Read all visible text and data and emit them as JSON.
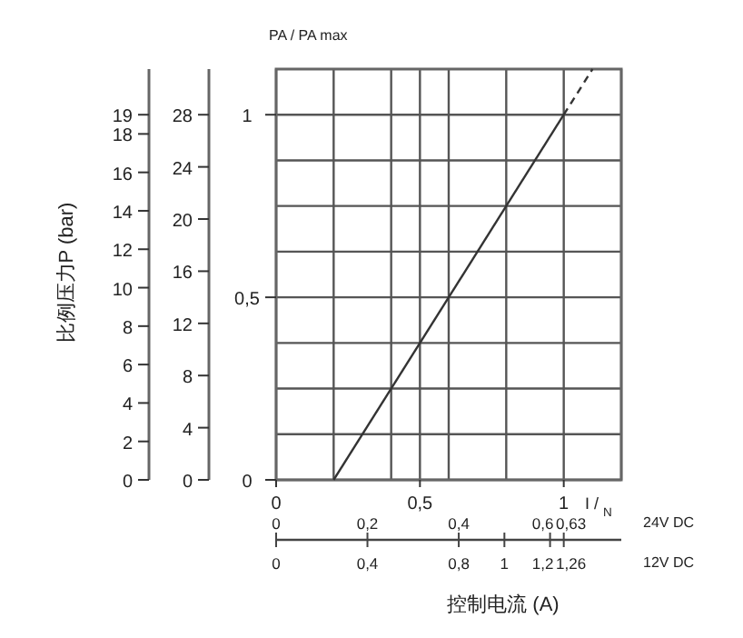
{
  "chart_data": {
    "type": "line",
    "ylabel": "PA / PA max",
    "xlabel": "I / $_{N}$",
    "x2label": "24V DC",
    "y2label": "比例压力P (bar)",
    "annotations": [
      "控制电流 (A)",
      "12V DC",
      "0",
      "0,4",
      "0,8",
      "1",
      "1,2",
      "1,26"
    ],
    "xlim": [
      0,
      1.2
    ],
    "xticks": [
      0,
      {
        "value": 0.2,
        "label": null
      },
      {
        "value": 0.4,
        "label": null
      },
      {
        "value": 0.5,
        "label": "0,5"
      },
      {
        "value": 0.6,
        "label": null
      },
      {
        "value": 0.8,
        "label": null
      },
      1,
      {
        "value": 1.2,
        "label": null
      }
    ],
    "ylim": [
      0,
      1.125
    ],
    "yticks": [
      0,
      {
        "value": 0.125,
        "label": null
      },
      {
        "value": 0.25,
        "label": null
      },
      {
        "value": 0.375,
        "label": null
      },
      {
        "value": 0.5,
        "label": "0,5"
      },
      {
        "value": 0.625,
        "label": null
      },
      {
        "value": 0.75,
        "label": null
      },
      {
        "value": 0.875,
        "label": null
      },
      1
    ],
    "x2lim": [
      0,
      0.756
    ],
    "x2ticks": [
      0,
      {
        "value": 0.2,
        "label": "0,2"
      },
      {
        "value": 0.4,
        "label": "0,4"
      },
      {
        "value": 0.5,
        "label": null
      },
      {
        "value": 0.6,
        "label": "0,6"
      },
      {
        "value": 0.63,
        "label": "0,63"
      }
    ],
    "y2lim": [
      0,
      31.5
    ],
    "y2ticks": [
      0,
      4,
      8,
      12,
      16,
      20,
      24,
      28
    ],
    "y3lim": [
      0,
      21.375
    ],
    "y3ticks": [
      0,
      2,
      4,
      6,
      8,
      10,
      12,
      14,
      16,
      18,
      19
    ],
    "grid": true,
    "series": [
      {
        "x": [
          0.2,
          1
        ],
        "values": [
          0,
          1
        ],
        "color": "#333333",
        "line_style": "solid"
      },
      {
        "x": [
          1,
          1.1
        ],
        "values": [
          1,
          1.125
        ],
        "color": "#333333",
        "line_style": "dashed"
      }
    ]
  }
}
